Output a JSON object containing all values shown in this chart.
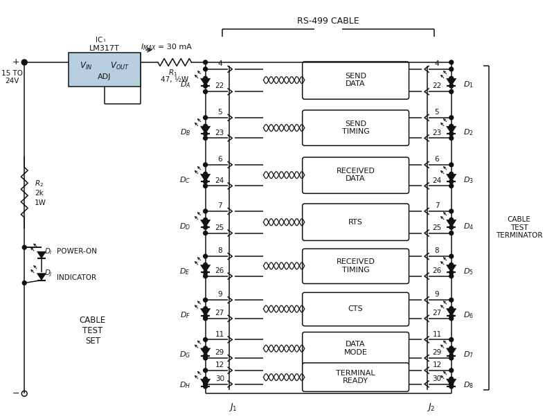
{
  "bg_color": "#ffffff",
  "pairs": [
    {
      "label": "SEND\nDATA",
      "p1": 4,
      "p2": 22,
      "dL": "A",
      "dR": "1"
    },
    {
      "label": "SEND\nTIMING",
      "p1": 5,
      "p2": 23,
      "dL": "B",
      "dR": "2"
    },
    {
      "label": "RECEIVED\nDATA",
      "p1": 6,
      "p2": 24,
      "dL": "C",
      "dR": "3"
    },
    {
      "label": "RTS",
      "p1": 7,
      "p2": 25,
      "dL": "D",
      "dR": "4"
    },
    {
      "label": "RECEIVED\nTIMING",
      "p1": 8,
      "p2": 26,
      "dL": "E",
      "dR": "5"
    },
    {
      "label": "CTS",
      "p1": 9,
      "p2": 27,
      "dL": "F",
      "dR": "6"
    },
    {
      "label": "DATA\nMODE",
      "p1": 11,
      "p2": 29,
      "dL": "G",
      "dR": "7"
    },
    {
      "label": "TERMINAL\nREADY",
      "p1": 12,
      "p2": 30,
      "dL": "H",
      "dR": "8"
    }
  ],
  "ic_color": "#b8cfe0"
}
